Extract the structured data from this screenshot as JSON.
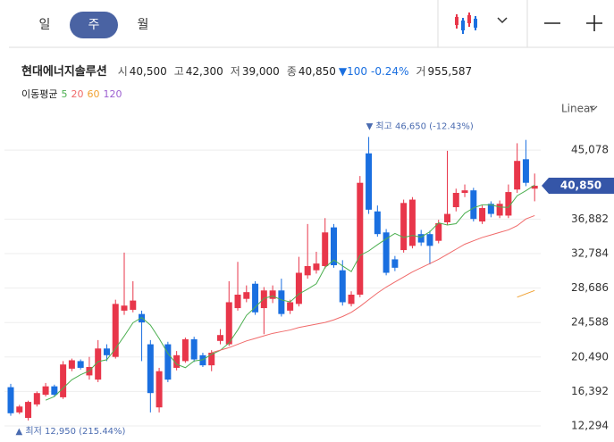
{
  "tabs": [
    "일",
    "주",
    "월"
  ],
  "selected_tab": 1,
  "quote": {
    "name": "현대에너지솔루션",
    "fields": [
      {
        "label": "시",
        "value": "40,500"
      },
      {
        "label": "고",
        "value": "42,300"
      },
      {
        "label": "저",
        "value": "39,000"
      },
      {
        "label": "종",
        "value": "40,850"
      }
    ],
    "change": "▼100",
    "change_pct": "-0.24%",
    "volume_label": "거",
    "volume": "955,587"
  },
  "chart_data": {
    "type": "candlestick",
    "scale_label": "Linear",
    "ma_label": "이동평균",
    "open": [
      16900,
      13900,
      13250,
      14850,
      16000,
      17000,
      15700,
      19100,
      20000,
      18300,
      17800,
      21500,
      20500,
      26000,
      26100,
      25600,
      22000,
      14500,
      22000,
      19200,
      20000,
      22600,
      20700,
      19500,
      22400,
      22000,
      26300,
      27400,
      29200,
      26300,
      27400,
      28400,
      26000,
      26800,
      30200,
      30800,
      31300,
      35900,
      30800,
      26800,
      27900,
      44700,
      37800,
      35300,
      32100,
      33200,
      33700,
      35100,
      35100,
      34300,
      36500,
      38300,
      40000,
      40300,
      36600,
      38700,
      37300,
      37300,
      40400,
      44000,
      40500
    ],
    "high": [
      17300,
      14800,
      15300,
      16400,
      17400,
      17200,
      20000,
      20300,
      20200,
      20500,
      22500,
      22000,
      27300,
      32900,
      29500,
      26000,
      22500,
      19200,
      22300,
      21200,
      22800,
      22900,
      21000,
      21300,
      23800,
      29500,
      31800,
      29000,
      29500,
      28800,
      29000,
      29800,
      27300,
      32400,
      36300,
      33000,
      37000,
      36300,
      32000,
      28300,
      42000,
      46650,
      38500,
      35700,
      32500,
      39200,
      39500,
      35600,
      35500,
      36800,
      45000,
      40500,
      41000,
      40600,
      38500,
      39000,
      39100,
      41000,
      45900,
      46300,
      42300
    ],
    "low": [
      13500,
      13700,
      12950,
      14600,
      15800,
      15800,
      15500,
      18800,
      19000,
      17800,
      17500,
      20000,
      20300,
      25500,
      25800,
      20000,
      13900,
      13900,
      17500,
      18900,
      19800,
      19900,
      19300,
      18800,
      22000,
      21800,
      26000,
      27000,
      25500,
      23200,
      26900,
      25300,
      25600,
      26500,
      29800,
      30400,
      31000,
      31100,
      26600,
      26500,
      27600,
      37500,
      34800,
      30200,
      30700,
      32900,
      33400,
      33700,
      31500,
      34000,
      36200,
      37800,
      39500,
      36600,
      36300,
      37100,
      37000,
      37000,
      40000,
      40800,
      39000
    ],
    "close": [
      13800,
      14600,
      15150,
      16200,
      17000,
      16000,
      19600,
      20100,
      19200,
      19300,
      21500,
      20700,
      26800,
      26600,
      27200,
      24600,
      16200,
      18800,
      17800,
      20700,
      22600,
      20200,
      19500,
      21000,
      23100,
      27000,
      27900,
      28200,
      25800,
      28400,
      28400,
      25600,
      27000,
      30500,
      31300,
      31600,
      35300,
      31400,
      27000,
      27900,
      41200,
      38000,
      35100,
      30500,
      31100,
      38800,
      39200,
      34100,
      33700,
      36400,
      37500,
      40000,
      40300,
      36900,
      38200,
      37500,
      38700,
      40100,
      43800,
      41200,
      40850
    ],
    "up_color": "#e8364a",
    "down_color": "#1a6fe0",
    "series": [
      {
        "name": "5",
        "color": "#4caf50",
        "values": [
          null,
          null,
          null,
          null,
          15350,
          15790,
          16790,
          17780,
          18380,
          18840,
          19940,
          20160,
          21500,
          22980,
          24560,
          25180,
          24280,
          22680,
          20920,
          19620,
          19220,
          20020,
          20160,
          20800,
          21280,
          22160,
          23700,
          25440,
          26400,
          27460,
          27740,
          27280,
          27040,
          27980,
          28560,
          29200,
          31140,
          32020,
          31320,
          30640,
          32560,
          33100,
          33840,
          34540,
          35180,
          34700,
          34940,
          34740,
          35380,
          36440,
          36180,
          36340,
          37580,
          38220,
          38580,
          38580,
          38320,
          38280,
          39660,
          40260,
          40930
        ]
      },
      {
        "name": "20",
        "color": "#f06a6a",
        "values": [
          null,
          null,
          null,
          null,
          null,
          null,
          null,
          null,
          null,
          null,
          null,
          null,
          null,
          null,
          null,
          null,
          null,
          null,
          null,
          null,
          null,
          null,
          null,
          21000,
          21300,
          21600,
          22000,
          22400,
          22700,
          23000,
          23300,
          23500,
          23700,
          24000,
          24200,
          24400,
          24600,
          24900,
          25300,
          25800,
          26500,
          27300,
          28100,
          28800,
          29400,
          30000,
          30600,
          31100,
          31600,
          32100,
          32700,
          33300,
          33900,
          34300,
          34700,
          35000,
          35300,
          35600,
          36100,
          36900,
          37300
        ]
      },
      {
        "name": "60",
        "color": "#f0a030",
        "values": [
          null,
          null,
          null,
          null,
          null,
          null,
          null,
          null,
          null,
          null,
          null,
          null,
          null,
          null,
          null,
          null,
          null,
          null,
          null,
          null,
          null,
          null,
          null,
          null,
          null,
          null,
          null,
          null,
          null,
          null,
          null,
          null,
          null,
          null,
          null,
          null,
          null,
          null,
          null,
          null,
          null,
          null,
          null,
          null,
          null,
          null,
          null,
          null,
          null,
          null,
          null,
          null,
          null,
          null,
          null,
          null,
          null,
          null,
          27600,
          28000,
          28400
        ]
      },
      {
        "name": "120",
        "color": "#9c5fd0"
      }
    ],
    "ylim": [
      10914,
      48069
    ],
    "yticks": [
      {
        "value": 12294,
        "label": "12,294"
      },
      {
        "value": 16392,
        "label": "16,392"
      },
      {
        "value": 20490,
        "label": "20,490"
      },
      {
        "value": 24588,
        "label": "24,588"
      },
      {
        "value": 28686,
        "label": "28,686"
      },
      {
        "value": 32784,
        "label": "32,784"
      },
      {
        "value": 36882,
        "label": "36,882"
      },
      {
        "value": 45078,
        "label": "45,078"
      }
    ],
    "grid": true,
    "last_price": {
      "value": 40850,
      "label": "40,850"
    },
    "max_label": "▼ 최고 46,650 (-12.43%)",
    "min_label": "▲ 최저 12,950 (215.44%)"
  }
}
